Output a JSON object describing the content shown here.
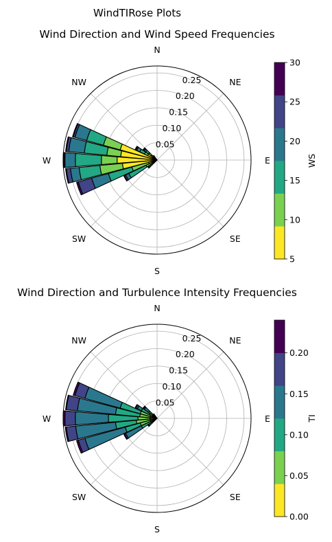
{
  "figure": {
    "suptitle": "WindTIRose Plots"
  },
  "colors": {
    "grid": "#b0b0b0",
    "viridis6": [
      "#fde725",
      "#7ad151",
      "#22a884",
      "#2a788e",
      "#414487",
      "#440154"
    ]
  },
  "chart_data": [
    {
      "type": "stacked_polar_bar",
      "title": "Wind Direction and Wind Speed Frequencies",
      "direction_labels": [
        "N",
        "NE",
        "E",
        "SE",
        "S",
        "SW",
        "W",
        "NW"
      ],
      "radial_ticks": [
        "0.05",
        "0.10",
        "0.15",
        "0.20",
        "0.25"
      ],
      "radial_tick_values": [
        0.05,
        0.1,
        0.15,
        0.2,
        0.25
      ],
      "rlim": [
        0,
        0.27
      ],
      "colorbar": {
        "label": "WS",
        "ticks": [
          "5",
          "10",
          "15",
          "20",
          "25",
          "30"
        ],
        "bin_edges": [
          5,
          9.17,
          13.33,
          17.5,
          21.67,
          25.83,
          30
        ]
      },
      "sectors": [
        {
          "direction_deg": 250,
          "segments": [
            0.025,
            0.075,
            0.145,
            0.195,
            0.235,
            0.24
          ]
        },
        {
          "direction_deg": 260,
          "segments": [
            0.1,
            0.165,
            0.225,
            0.25,
            0.262,
            0.264
          ]
        },
        {
          "direction_deg": 270,
          "segments": [
            0.115,
            0.16,
            0.235,
            0.265,
            0.268,
            0.27
          ]
        },
        {
          "direction_deg": 280,
          "segments": [
            0.105,
            0.145,
            0.21,
            0.255,
            0.262,
            0.264
          ]
        },
        {
          "direction_deg": 290,
          "segments": [
            0.11,
            0.16,
            0.21,
            0.245,
            0.25,
            0.252
          ]
        },
        {
          "direction_deg": 300,
          "segments": [
            0.03,
            0.04,
            0.055,
            0.065,
            0.068,
            0.07
          ]
        },
        {
          "direction_deg": 240,
          "segments": [
            0.015,
            0.035,
            0.09,
            0.1,
            0.104,
            0.106
          ]
        },
        {
          "direction_deg": 310,
          "segments": [
            0.02,
            0.03,
            0.04,
            0.045,
            0.048,
            0.05
          ]
        },
        {
          "direction_deg": 230,
          "segments": [
            0.01,
            0.02,
            0.025,
            0.03,
            0.032,
            0.033
          ]
        },
        {
          "direction_deg": 320,
          "segments": [
            0.005,
            0.01,
            0.012,
            0.014,
            0.015,
            0.016
          ]
        }
      ]
    },
    {
      "type": "stacked_polar_bar",
      "title": "Wind Direction and Turbulence Intensity Frequencies",
      "direction_labels": [
        "N",
        "NE",
        "E",
        "SE",
        "S",
        "SW",
        "W",
        "NW"
      ],
      "radial_ticks": [
        "0.05",
        "0.10",
        "0.15",
        "0.20",
        "0.25"
      ],
      "radial_tick_values": [
        0.05,
        0.1,
        0.15,
        0.2,
        0.25
      ],
      "rlim": [
        0,
        0.27
      ],
      "colorbar": {
        "label": "TI",
        "ticks": [
          "0.00",
          "0.05",
          "0.10",
          "0.15",
          "0.20"
        ],
        "bin_edges": [
          0,
          0.04,
          0.08,
          0.12,
          0.16,
          0.2,
          0.24
        ]
      },
      "sectors": [
        {
          "direction_deg": 250,
          "segments": [
            0.02,
            0.05,
            0.095,
            0.215,
            0.235,
            0.24
          ]
        },
        {
          "direction_deg": 260,
          "segments": [
            0.02,
            0.06,
            0.12,
            0.235,
            0.262,
            0.265
          ]
        },
        {
          "direction_deg": 270,
          "segments": [
            0.02,
            0.055,
            0.14,
            0.235,
            0.265,
            0.27
          ]
        },
        {
          "direction_deg": 280,
          "segments": [
            0.02,
            0.05,
            0.12,
            0.23,
            0.262,
            0.264
          ]
        },
        {
          "direction_deg": 290,
          "segments": [
            0.02,
            0.05,
            0.11,
            0.215,
            0.245,
            0.25
          ]
        },
        {
          "direction_deg": 300,
          "segments": [
            0.01,
            0.025,
            0.05,
            0.063,
            0.068,
            0.07
          ]
        },
        {
          "direction_deg": 240,
          "segments": [
            0.005,
            0.02,
            0.05,
            0.1,
            0.104,
            0.106
          ]
        },
        {
          "direction_deg": 310,
          "segments": [
            0.005,
            0.015,
            0.03,
            0.045,
            0.048,
            0.05
          ]
        },
        {
          "direction_deg": 230,
          "segments": [
            0.005,
            0.01,
            0.02,
            0.03,
            0.032,
            0.033
          ]
        },
        {
          "direction_deg": 320,
          "segments": [
            0.002,
            0.006,
            0.01,
            0.014,
            0.015,
            0.016
          ]
        }
      ]
    }
  ]
}
